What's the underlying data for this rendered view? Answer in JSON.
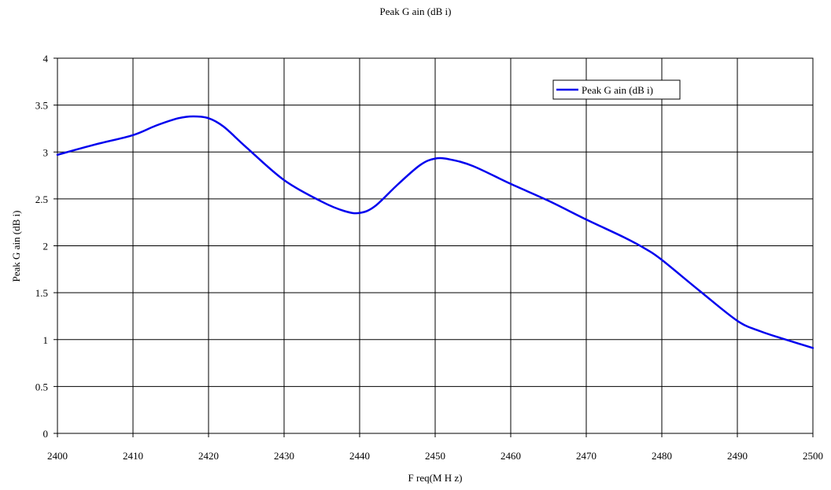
{
  "chart_data": {
    "type": "line",
    "title": "Peak G ain (dB i)",
    "xlabel": "F req(M H z)",
    "ylabel": "Peak G ain (dB i)",
    "xlim": [
      2400,
      2500
    ],
    "ylim": [
      0,
      4
    ],
    "xticks": [
      2400,
      2410,
      2420,
      2430,
      2440,
      2450,
      2460,
      2470,
      2480,
      2490,
      2500
    ],
    "yticks": [
      0,
      0.5,
      1,
      1.5,
      2,
      2.5,
      3,
      3.5,
      4
    ],
    "ytick_labels": [
      "0",
      "0.5",
      "1",
      "1.5",
      "2",
      "2.5",
      "3",
      "3.5",
      "4"
    ],
    "grid": true,
    "legend_position": "top-right",
    "series": [
      {
        "name": "Peak G ain (dB i)",
        "color": "#0000ee",
        "x": [
          2400,
          2405,
          2410,
          2413,
          2416,
          2418,
          2420,
          2422,
          2425,
          2430,
          2435,
          2438,
          2440,
          2442,
          2445,
          2448,
          2450,
          2452,
          2455,
          2460,
          2465,
          2470,
          2475,
          2478,
          2480,
          2485,
          2490,
          2493,
          2496,
          2500
        ],
        "y": [
          2.97,
          3.08,
          3.18,
          3.28,
          3.36,
          3.38,
          3.36,
          3.27,
          3.05,
          2.7,
          2.47,
          2.37,
          2.35,
          2.42,
          2.65,
          2.86,
          2.93,
          2.92,
          2.85,
          2.66,
          2.48,
          2.28,
          2.09,
          1.96,
          1.85,
          1.52,
          1.2,
          1.09,
          1.01,
          0.91
        ]
      }
    ]
  }
}
